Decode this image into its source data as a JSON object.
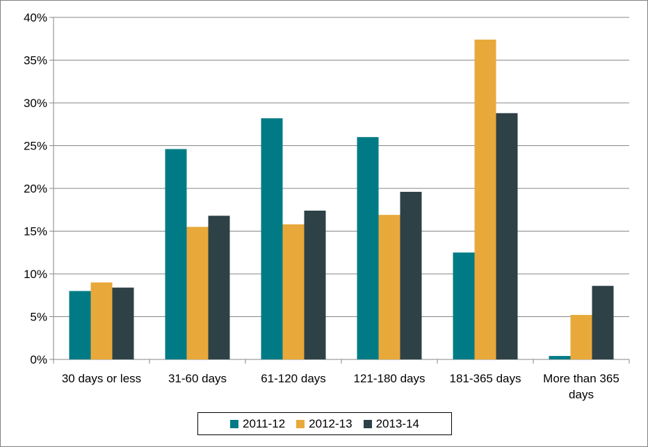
{
  "chart_data": {
    "type": "bar",
    "categories": [
      [
        "30 days or less"
      ],
      [
        "31-60 days"
      ],
      [
        "61-120 days"
      ],
      [
        "121-180 days"
      ],
      [
        "181-365 days"
      ],
      [
        "More than 365",
        "days"
      ]
    ],
    "series": [
      {
        "name": "2011-12",
        "color": "#007B85",
        "values": [
          8.0,
          24.6,
          28.2,
          26.0,
          12.5,
          0.4
        ]
      },
      {
        "name": "2012-13",
        "color": "#E8A93A",
        "values": [
          9.0,
          15.5,
          15.8,
          16.9,
          37.4,
          5.2
        ]
      },
      {
        "name": "2013-14",
        "color": "#2E4146",
        "values": [
          8.4,
          16.8,
          17.4,
          19.6,
          28.8,
          8.6
        ]
      }
    ],
    "yticks": [
      "0%",
      "5%",
      "10%",
      "15%",
      "20%",
      "25%",
      "30%",
      "35%",
      "40%"
    ],
    "ylim": [
      0,
      40
    ],
    "grid": true,
    "legend_position": "bottom"
  }
}
